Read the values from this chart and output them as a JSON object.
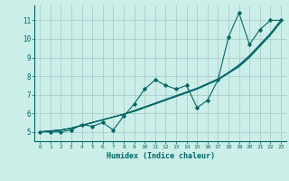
{
  "xlabel": "Humidex (Indice chaleur)",
  "bg_color": "#cceee8",
  "grid_color": "#aacccc",
  "line_color": "#006666",
  "xlim": [
    -0.5,
    23.5
  ],
  "ylim": [
    4.5,
    11.8
  ],
  "yticks": [
    5,
    6,
    7,
    8,
    9,
    10,
    11
  ],
  "xticks": [
    0,
    1,
    2,
    3,
    4,
    5,
    6,
    7,
    8,
    9,
    10,
    11,
    12,
    13,
    14,
    15,
    16,
    17,
    18,
    19,
    20,
    21,
    22,
    23
  ],
  "x": [
    0,
    1,
    2,
    3,
    4,
    5,
    6,
    7,
    8,
    9,
    10,
    11,
    12,
    13,
    14,
    15,
    16,
    17,
    18,
    19,
    20,
    21,
    22,
    23
  ],
  "series_wiggly": [
    5.0,
    5.0,
    5.0,
    5.1,
    5.4,
    5.3,
    5.5,
    5.1,
    5.85,
    6.5,
    7.3,
    7.8,
    7.5,
    7.3,
    7.5,
    6.3,
    6.7,
    7.8,
    10.1,
    11.4,
    9.7,
    10.5,
    11.0,
    11.0
  ],
  "series_straight1": [
    5.0,
    5.05,
    5.1,
    5.2,
    5.35,
    5.5,
    5.65,
    5.8,
    5.95,
    6.1,
    6.3,
    6.5,
    6.7,
    6.9,
    7.1,
    7.3,
    7.55,
    7.8,
    8.15,
    8.5,
    9.0,
    9.6,
    10.2,
    10.9
  ],
  "series_straight2": [
    5.0,
    5.05,
    5.1,
    5.2,
    5.35,
    5.5,
    5.65,
    5.8,
    5.95,
    6.15,
    6.35,
    6.55,
    6.75,
    6.95,
    7.15,
    7.35,
    7.6,
    7.85,
    8.2,
    8.6,
    9.1,
    9.7,
    10.3,
    11.0
  ],
  "series_straight3": [
    5.0,
    5.05,
    5.1,
    5.2,
    5.35,
    5.5,
    5.65,
    5.8,
    5.95,
    6.12,
    6.32,
    6.52,
    6.72,
    6.92,
    7.12,
    7.32,
    7.57,
    7.82,
    8.17,
    8.55,
    9.05,
    9.65,
    10.25,
    10.95
  ],
  "marker": "D",
  "marker_size": 1.8,
  "linewidth": 0.8
}
